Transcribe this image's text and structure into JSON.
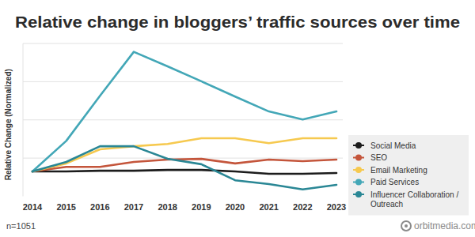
{
  "chart_data": {
    "type": "line",
    "title": "Relative change in bloggers’ traffic sources over time",
    "y_label": "Relative Change (Normalized)",
    "note": "n=1051",
    "source": "orbitmedia.com",
    "categories": [
      "2014",
      "2015",
      "2016",
      "2017",
      "2018",
      "2019",
      "2020",
      "2021",
      "2022",
      "2023"
    ],
    "series": [
      {
        "name": "Social Media",
        "color": "#1c1c1c",
        "values": [
          0.65,
          0.65,
          0.67,
          0.67,
          0.69,
          0.69,
          0.65,
          0.59,
          0.59,
          0.61
        ]
      },
      {
        "name": "SEO",
        "color": "#c4553b",
        "values": [
          0.65,
          0.77,
          0.77,
          0.9,
          0.96,
          0.98,
          0.86,
          0.96,
          0.92,
          0.96
        ]
      },
      {
        "name": "Email Marketing",
        "color": "#f6c94f",
        "values": [
          0.65,
          0.86,
          1.23,
          1.31,
          1.37,
          1.52,
          1.52,
          1.39,
          1.52,
          1.52
        ]
      },
      {
        "name": "Paid Services",
        "color": "#43a7b7",
        "values": [
          0.65,
          1.45,
          2.63,
          3.78,
          3.4,
          3.01,
          2.61,
          2.22,
          2.01,
          2.22
        ]
      },
      {
        "name": "Influencer Collaboration / Outreach",
        "color": "#2a8795",
        "values": [
          0.65,
          0.9,
          1.31,
          1.31,
          0.98,
          0.84,
          0.42,
          0.32,
          0.18,
          0.3
        ]
      }
    ],
    "ylim": [
      0,
      4
    ],
    "yticks": [
      1,
      2,
      3,
      4
    ],
    "grid": true,
    "legend": "right",
    "tick_labels": "x"
  }
}
